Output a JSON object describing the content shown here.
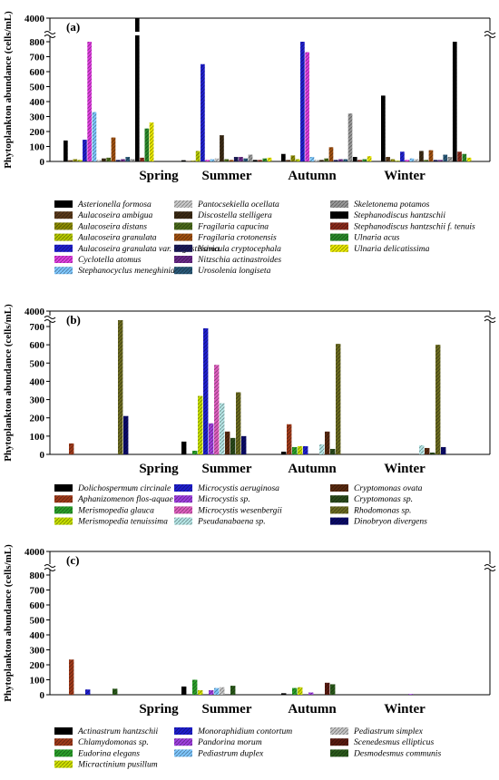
{
  "figure": {
    "y_axis_label": "Phytoplankton abundance (cells/mL)"
  },
  "chart_data": [
    {
      "panel_label": "(a)",
      "type": "bar",
      "ylabel": "Phytoplankton abundance (cells/mL)",
      "categories": [
        "Spring",
        "Summer",
        "Autumn",
        "Winter"
      ],
      "yticks": [
        0,
        100,
        200,
        300,
        400,
        500,
        600,
        700,
        800,
        4000
      ],
      "axis_break": true,
      "ylim": [
        0,
        4000
      ],
      "series": [
        {
          "name": "Asterionella formosa",
          "color": "#000000",
          "values": [
            140,
            8,
            50,
            440
          ]
        },
        {
          "name": "Aulacoseira ambigua",
          "color": "#5a3a1a",
          "values": [
            8,
            3,
            10,
            30
          ]
        },
        {
          "name": "Aulacoseira distans",
          "color": "#8b8b00",
          "values": [
            15,
            5,
            40,
            15
          ]
        },
        {
          "name": "Aulacoseira granulata",
          "color": "#b5c800",
          "values": [
            10,
            70,
            15,
            5
          ]
        },
        {
          "name": "Aulacoseira granulata var. angustissima",
          "color": "#1f1fd0",
          "values": [
            145,
            650,
            800,
            65
          ]
        },
        {
          "name": "Cyclotella atomus",
          "color": "#e040e0",
          "values": [
            800,
            10,
            730,
            10
          ]
        },
        {
          "name": "Stephanocyclus meneghinianus",
          "color": "#7fc8ff",
          "values": [
            330,
            15,
            30,
            20
          ]
        },
        {
          "name": "Pantocsekiella ocellata",
          "color": "#cccccc",
          "values": [
            10,
            20,
            10,
            15
          ]
        },
        {
          "name": "Discostella stelligera",
          "color": "#3b2a14",
          "values": [
            20,
            175,
            10,
            70
          ]
        },
        {
          "name": "Fragilaria capucina",
          "color": "#4a6a1a",
          "values": [
            25,
            15,
            20,
            10
          ]
        },
        {
          "name": "Fragilaria crotonensis",
          "color": "#a05010",
          "values": [
            160,
            10,
            95,
            75
          ]
        },
        {
          "name": "Navicula cryptocephala",
          "color": "#1a1a5a",
          "values": [
            10,
            30,
            10,
            10
          ]
        },
        {
          "name": "Nitzschia actinastroides",
          "color": "#6a2a8a",
          "values": [
            15,
            30,
            15,
            10
          ]
        },
        {
          "name": "Urosolenia longiseta",
          "color": "#2a5a7a",
          "values": [
            30,
            20,
            15,
            45
          ]
        },
        {
          "name": "Skeletonema potamos",
          "color": "#9a9a9a",
          "values": [
            15,
            45,
            320,
            30
          ]
        },
        {
          "name": "Stephanodiscus hantzschii",
          "color": "#000000",
          "values": [
            3900,
            10,
            30,
            800
          ]
        },
        {
          "name": "Stephanodiscus hantzschii f. tenuis",
          "color": "#8b2a1a",
          "values": [
            25,
            10,
            10,
            65
          ]
        },
        {
          "name": "Ulnaria acus",
          "color": "#2a8a2a",
          "values": [
            220,
            20,
            15,
            50
          ]
        },
        {
          "name": "Ulnaria delicatissima",
          "color": "#e8e800",
          "values": [
            260,
            25,
            35,
            25
          ]
        }
      ]
    },
    {
      "panel_label": "(b)",
      "type": "bar",
      "ylabel": "Phytoplankton abundance (cells/mL)",
      "categories": [
        "Spring",
        "Summer",
        "Autumn",
        "Winter"
      ],
      "yticks": [
        0,
        100,
        200,
        300,
        400,
        500,
        600,
        700,
        4000
      ],
      "axis_break": true,
      "ylim": [
        0,
        4000
      ],
      "series": [
        {
          "name": "Dolichospermum circinale",
          "color": "#000000",
          "values": [
            0,
            70,
            15,
            0
          ]
        },
        {
          "name": "Aphanizomenon flos-aquae",
          "color": "#a03a1a",
          "values": [
            60,
            0,
            165,
            0
          ]
        },
        {
          "name": "Merismopedia glauca",
          "color": "#2aa02a",
          "values": [
            0,
            20,
            40,
            0
          ]
        },
        {
          "name": "Merismopedia tenuissima",
          "color": "#c8e000",
          "values": [
            0,
            320,
            45,
            0
          ]
        },
        {
          "name": "Microcystis aeruginosa",
          "color": "#1f1fd0",
          "values": [
            0,
            690,
            45,
            0
          ]
        },
        {
          "name": "Microcystis sp.",
          "color": "#a040e0",
          "values": [
            0,
            170,
            0,
            0
          ]
        },
        {
          "name": "Microcystis wesenbergii",
          "color": "#e060c0",
          "values": [
            0,
            490,
            0,
            0
          ]
        },
        {
          "name": "Pseudanabaena sp.",
          "color": "#b8e8e8",
          "values": [
            0,
            280,
            55,
            50
          ]
        },
        {
          "name": "Cryptomonas ovata",
          "color": "#5a2a10",
          "values": [
            0,
            125,
            125,
            35
          ]
        },
        {
          "name": "Cryptomonas sp.",
          "color": "#2a4a1a",
          "values": [
            0,
            90,
            30,
            10
          ]
        },
        {
          "name": "Rhodomonas sp.",
          "color": "#6b6b20",
          "values": [
            735,
            340,
            605,
            600
          ]
        },
        {
          "name": "Dinobryon divergens",
          "color": "#0a0a6a",
          "values": [
            210,
            100,
            0,
            40
          ]
        }
      ]
    },
    {
      "panel_label": "(c)",
      "type": "bar",
      "ylabel": "Phytoplankton abundance (cells/mL)",
      "categories": [
        "Spring",
        "Summer",
        "Autumn",
        "Winter"
      ],
      "yticks": [
        0,
        100,
        200,
        300,
        400,
        500,
        600,
        700,
        800,
        4000
      ],
      "axis_break": true,
      "ylim": [
        0,
        4000
      ],
      "series": [
        {
          "name": "Actinastrum hantzschii",
          "color": "#000000",
          "values": [
            0,
            55,
            10,
            0
          ]
        },
        {
          "name": "Chlamydomonas sp.",
          "color": "#a03a1a",
          "values": [
            235,
            0,
            0,
            0
          ]
        },
        {
          "name": "Eudorina elegans",
          "color": "#2aa02a",
          "values": [
            0,
            100,
            45,
            0
          ]
        },
        {
          "name": "Micractinium pusillum",
          "color": "#d0e000",
          "values": [
            0,
            30,
            50,
            0
          ]
        },
        {
          "name": "Monoraphidium contortum",
          "color": "#1f1fd0",
          "values": [
            35,
            0,
            0,
            0
          ]
        },
        {
          "name": "Pandorina morum",
          "color": "#a040e0",
          "values": [
            0,
            30,
            15,
            5
          ]
        },
        {
          "name": "Pediastrum duplex",
          "color": "#7fc8ff",
          "values": [
            0,
            45,
            0,
            0
          ]
        },
        {
          "name": "Pediastrum simplex",
          "color": "#c8c8c8",
          "values": [
            0,
            50,
            0,
            0
          ]
        },
        {
          "name": "Scenedesmus ellipticus",
          "color": "#5a1a10",
          "values": [
            0,
            0,
            80,
            0
          ]
        },
        {
          "name": "Desmodesmus communis",
          "color": "#2a5a1a",
          "values": [
            40,
            60,
            70,
            0
          ]
        }
      ]
    }
  ]
}
